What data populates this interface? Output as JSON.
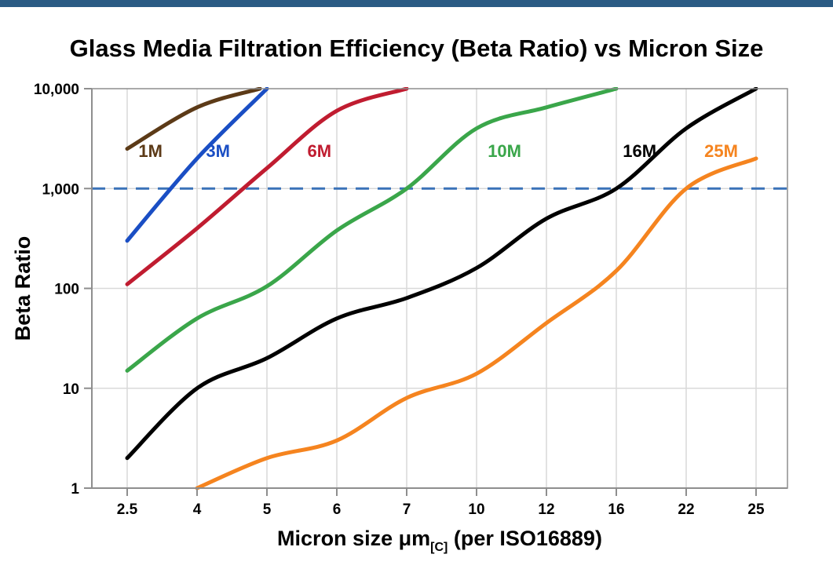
{
  "page": {
    "top_bar_color": "#2B5B84",
    "background_color": "#FFFFFF"
  },
  "chart": {
    "title": "Glass Media Filtration Efficiency (Beta Ratio) vs Micron Size",
    "y_axis_title": "Beta Ratio",
    "x_axis_title_main": "Micron size μm",
    "x_axis_title_sub": "[C]",
    "x_axis_title_rest": " (per ISO16889)"
  },
  "chart_data": {
    "type": "line",
    "title": "Glass Media Filtration Efficiency (Beta Ratio) vs Micron Size",
    "xlabel": "Micron size μm[C] (per ISO16889)",
    "ylabel": "Beta Ratio",
    "x_scale": "category",
    "y_scale": "log",
    "grid": true,
    "legend_position": "inline-labels",
    "categories": [
      2.5,
      4,
      5,
      6,
      7,
      10,
      12,
      16,
      22,
      25
    ],
    "x_tick_labels": [
      "2.5",
      "4",
      "5",
      "6",
      "7",
      "10",
      "12",
      "16",
      "22",
      "25"
    ],
    "y_tick_values": [
      1,
      10,
      100,
      1000,
      10000
    ],
    "y_tick_labels": [
      "1",
      "10",
      "100",
      "1,000",
      "10,000"
    ],
    "ylim": [
      1,
      10000
    ],
    "reference_line": {
      "value": 1000,
      "style": "dashed",
      "color": "#3A72B8"
    },
    "colors": {
      "grid": "#D9D9D9",
      "axis": "#8E8E8E",
      "tick": "#8E8E8E",
      "text": "#000000"
    },
    "series": [
      {
        "name": "1M",
        "color": "#5C3A17",
        "label_pos": [
          3.0,
          2400
        ],
        "points": [
          [
            2.5,
            2500
          ],
          [
            4,
            6500
          ],
          [
            4.9,
            10000
          ]
        ]
      },
      {
        "name": "3M",
        "color": "#1A4EC4",
        "label_pos": [
          4.3,
          2400
        ],
        "points": [
          [
            2.5,
            300
          ],
          [
            4,
            2000
          ],
          [
            5,
            10000
          ]
        ]
      },
      {
        "name": "6M",
        "color": "#C01C30",
        "label_pos": [
          5.75,
          2400
        ],
        "points": [
          [
            2.5,
            110
          ],
          [
            4,
            400
          ],
          [
            5,
            1600
          ],
          [
            6,
            6000
          ],
          [
            7,
            10000
          ]
        ]
      },
      {
        "name": "10M",
        "color": "#3AA64A",
        "label_pos": [
          10.8,
          2400
        ],
        "points": [
          [
            2.5,
            15
          ],
          [
            4,
            50
          ],
          [
            5,
            105
          ],
          [
            6,
            380
          ],
          [
            7,
            1000
          ],
          [
            10,
            4000
          ],
          [
            12,
            6500
          ],
          [
            16,
            10000
          ]
        ]
      },
      {
        "name": "16M",
        "color": "#000000",
        "label_pos": [
          18,
          2400
        ],
        "points": [
          [
            2.5,
            2
          ],
          [
            4,
            10
          ],
          [
            5,
            20
          ],
          [
            6,
            50
          ],
          [
            7,
            80
          ],
          [
            10,
            160
          ],
          [
            12,
            500
          ],
          [
            16,
            1000
          ],
          [
            22,
            4000
          ],
          [
            25,
            10000
          ]
        ]
      },
      {
        "name": "25M",
        "color": "#F5841F",
        "label_pos": [
          23.5,
          2400
        ],
        "points": [
          [
            4,
            1
          ],
          [
            5,
            2
          ],
          [
            6,
            3
          ],
          [
            7,
            8
          ],
          [
            10,
            14
          ],
          [
            12,
            45
          ],
          [
            16,
            150
          ],
          [
            22,
            1000
          ],
          [
            25,
            2000
          ]
        ]
      }
    ]
  }
}
